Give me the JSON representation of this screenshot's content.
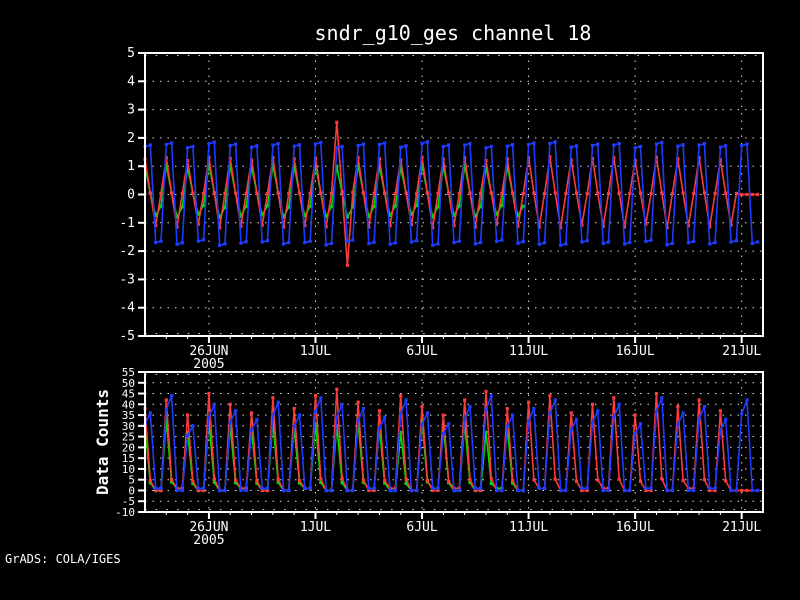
{
  "title": "sndr_g10_ges channel 18",
  "watermark": "GrADS: COLA/IGES",
  "colors": {
    "background": "#000000",
    "frame": "#ffffff",
    "grid": "#dedede",
    "text": "#ffffff",
    "red": "#fa3c3c",
    "green": "#00dc00",
    "blue": "#1e3cff"
  },
  "x_axis": {
    "tick_labels": [
      "26JUN",
      "1JUL",
      "6JUL",
      "11JUL",
      "16JUL",
      "21JUL"
    ],
    "tick_days": [
      3,
      8,
      13,
      18,
      23,
      28
    ],
    "year_label": "2005",
    "start_date": "23JUN2005",
    "days_total": 29,
    "samples_per_day": 4
  },
  "chart_data": [
    {
      "type": "line",
      "panel": "top",
      "title": "sndr_g10_ges channel 18",
      "ylim": [
        -5,
        5
      ],
      "y_ticks": [
        5,
        4,
        3,
        2,
        1,
        0,
        -1,
        -2,
        -3,
        -4,
        -5
      ],
      "grid_values": [
        4,
        3,
        2,
        1,
        0,
        -1,
        -2,
        -3,
        -4
      ],
      "grid": "dotted",
      "legend": "none",
      "note": "diurnal oscillation, 6-hourly samples; red anomaly spike near 2JUL; green series ends ~10JUL; red flat at 0 on last day",
      "series": [
        {
          "name": "green",
          "color_key": "green",
          "quarter_weights": [
            [
              1,
              0
            ],
            [
              0.05,
              0
            ],
            [
              0,
              1
            ],
            [
              0,
              0.55
            ]
          ],
          "day_peaks": [
            1.0,
            1.05,
            0.95,
            1.08,
            1.02,
            0.98,
            1.05,
            1.0,
            1.04,
            1.0,
            1.05,
            1.0,
            0.96,
            1.06,
            1.0,
            1.04,
            0.95,
            1.0
          ],
          "day_troughs": [
            -0.75,
            -0.8,
            -0.7,
            -0.82,
            -0.76,
            -0.72,
            -0.8,
            -0.75,
            -0.78,
            -0.8,
            -0.78,
            -0.74,
            -0.7,
            -0.8,
            -0.74,
            -0.78,
            -0.7,
            -0.75
          ]
        },
        {
          "name": "red",
          "color_key": "red",
          "quarter_weights": [
            [
              1,
              0
            ],
            [
              0.04,
              0
            ],
            [
              0,
              1
            ],
            [
              0.03,
              0
            ]
          ],
          "day_peaks": [
            1.25,
            1.3,
            1.2,
            1.32,
            1.28,
            1.22,
            1.3,
            1.26,
            1.28,
            2.55,
            1.3,
            1.26,
            1.22,
            1.32,
            1.25,
            1.3,
            1.2,
            1.26,
            1.3,
            1.33,
            1.22,
            1.27,
            1.3,
            1.2,
            1.32,
            1.26,
            1.3,
            1.22,
            0
          ],
          "day_troughs": [
            -1.1,
            -1.15,
            -1.05,
            -1.18,
            -1.12,
            -1.08,
            -1.15,
            -1.1,
            -1.14,
            -2.5,
            -1.15,
            -1.1,
            -1.06,
            -1.18,
            -1.1,
            -1.15,
            -1.05,
            -1.12,
            -1.15,
            -1.18,
            -1.08,
            -1.12,
            -1.15,
            -1.05,
            -1.18,
            -1.11,
            -1.15,
            -1.08,
            0
          ]
        },
        {
          "name": "blue",
          "color_key": "blue",
          "quarter_weights": [
            [
              0.97,
              0
            ],
            [
              1,
              0
            ],
            [
              0,
              1
            ],
            [
              0,
              0.97
            ]
          ],
          "day_peaks": [
            1.75,
            1.82,
            1.7,
            1.85,
            1.78,
            1.72,
            1.8,
            1.76,
            1.84,
            1.7,
            1.78,
            1.82,
            1.72,
            1.86,
            1.75,
            1.8,
            1.7,
            1.76,
            1.82,
            1.86,
            1.72,
            1.78,
            1.8,
            1.7,
            1.84,
            1.76,
            1.8,
            1.72,
            1.78
          ],
          "day_troughs": [
            -1.7,
            -1.76,
            -1.65,
            -1.8,
            -1.72,
            -1.68,
            -1.75,
            -1.7,
            -1.78,
            -1.66,
            -1.74,
            -1.76,
            -1.68,
            -1.8,
            -1.7,
            -1.75,
            -1.66,
            -1.72,
            -1.76,
            -1.8,
            -1.68,
            -1.73,
            -1.75,
            -1.66,
            -1.78,
            -1.71,
            -1.75,
            -1.68,
            -1.73
          ]
        }
      ]
    },
    {
      "type": "line",
      "panel": "bottom",
      "ylabel": "Data Counts",
      "ylim": [
        -10,
        55
      ],
      "y_ticks": [
        55,
        50,
        45,
        40,
        35,
        30,
        25,
        20,
        15,
        10,
        5,
        0,
        -5,
        -10
      ],
      "grid_values": [
        50,
        45,
        40,
        35,
        30,
        25,
        20,
        15,
        10,
        5,
        0,
        -5
      ],
      "grid": "dotted",
      "legend": "none",
      "note": "counts per cycle: daily spikes to ~27-47 with flat minima near 0; green ends ~10JUL",
      "series": [
        {
          "name": "green",
          "color_key": "green",
          "quarter_weights": [
            [
              1,
              0
            ],
            [
              0.12,
              0
            ],
            [
              0,
              1
            ],
            [
              0,
              1
            ]
          ],
          "day_peaks": [
            30,
            33,
            27,
            32,
            30,
            28,
            32,
            29,
            31,
            30,
            32,
            29,
            27,
            33,
            30,
            31,
            27,
            29
          ],
          "day_troughs": [
            0,
            1,
            0,
            0,
            1,
            0,
            0,
            1,
            0,
            0,
            1,
            0,
            0,
            1,
            0,
            0,
            1,
            0
          ]
        },
        {
          "name": "red",
          "color_key": "red",
          "quarter_weights": [
            [
              1,
              0
            ],
            [
              0.12,
              0
            ],
            [
              0,
              1
            ],
            [
              0,
              1
            ]
          ],
          "day_peaks": [
            38,
            42,
            35,
            45,
            40,
            36,
            43,
            38,
            44,
            47,
            41,
            37,
            44,
            39,
            35,
            42,
            46,
            38,
            41,
            44,
            36,
            40,
            43,
            35,
            45,
            39,
            42,
            37,
            0
          ],
          "day_troughs": [
            0,
            1,
            0,
            0,
            1,
            0,
            0,
            1,
            0,
            0,
            0,
            1,
            0,
            0,
            1,
            0,
            0,
            0,
            1,
            0,
            0,
            1,
            0,
            0,
            0,
            1,
            0,
            0,
            0
          ]
        },
        {
          "name": "blue",
          "color_key": "blue",
          "quarter_weights": [
            [
              0.85,
              0
            ],
            [
              1,
              0
            ],
            [
              0,
              1
            ],
            [
              0,
              1
            ]
          ],
          "day_peaks": [
            36,
            44,
            30,
            40,
            37,
            33,
            41,
            35,
            43,
            40,
            38,
            34,
            42,
            36,
            31,
            39,
            44,
            35,
            38,
            42,
            33,
            37,
            40,
            31,
            43,
            36,
            39,
            33,
            42
          ],
          "day_troughs": [
            1,
            0,
            1,
            0,
            0,
            1,
            0,
            1,
            0,
            0,
            1,
            0,
            0,
            1,
            0,
            1,
            0,
            0,
            1,
            0,
            1,
            0,
            0,
            1,
            0,
            0,
            1,
            0,
            0
          ]
        }
      ]
    }
  ]
}
